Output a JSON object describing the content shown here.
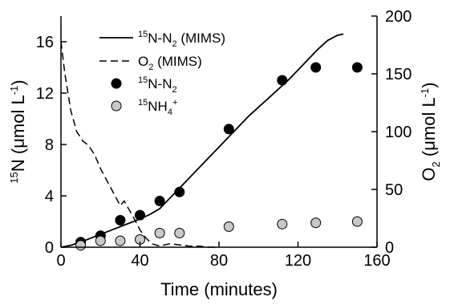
{
  "chart_data": {
    "type": "line",
    "xlabel": "Time (minutes)",
    "ylabel_left": {
      "sup": "15",
      "main": "N (μmol L",
      "sup2": "-1",
      "end": ")"
    },
    "ylabel_right": {
      "main": "O",
      "sub": "2",
      "rest": " (μmol L",
      "sup": "-1",
      "end": ")"
    },
    "xlim": [
      0,
      160
    ],
    "ylim_left": [
      0,
      18
    ],
    "ylim_right": [
      0,
      200
    ],
    "x_ticks": [
      0,
      40,
      80,
      120,
      160
    ],
    "y_ticks_left": [
      0,
      4,
      8,
      12,
      16
    ],
    "y_ticks_right": [
      0,
      50,
      100,
      150,
      200
    ],
    "grid": false,
    "legend_position": "top-left",
    "legend": [
      {
        "style": "solid-line",
        "sup": "15",
        "base": "N-N",
        "sub": "2",
        "tail": " (MIMS)"
      },
      {
        "style": "dashed-line",
        "sup": "",
        "base": "O",
        "sub": "2",
        "tail": " (MIMS)"
      },
      {
        "style": "black-dot",
        "sup": "15",
        "base": "N-N",
        "sub": "2",
        "tail": ""
      },
      {
        "style": "grey-dot",
        "sup": "15",
        "base": "NH",
        "sub": "4",
        "tail": "",
        "sup2": "+"
      }
    ],
    "series": [
      {
        "name": "15N-N2 (MIMS)",
        "axis": "left",
        "style": "solid",
        "color": "#000000",
        "points": [
          [
            0,
            0
          ],
          [
            5,
            0.15
          ],
          [
            10,
            0.4
          ],
          [
            15,
            0.7
          ],
          [
            20,
            1.0
          ],
          [
            25,
            1.3
          ],
          [
            30,
            1.6
          ],
          [
            35,
            1.9
          ],
          [
            40,
            2.2
          ],
          [
            45,
            2.55
          ],
          [
            50,
            3.0
          ],
          [
            55,
            3.8
          ],
          [
            60,
            4.6
          ],
          [
            65,
            5.4
          ],
          [
            70,
            6.2
          ],
          [
            75,
            7.0
          ],
          [
            80,
            7.8
          ],
          [
            85,
            8.6
          ],
          [
            90,
            9.4
          ],
          [
            95,
            10.2
          ],
          [
            100,
            10.9
          ],
          [
            105,
            11.6
          ],
          [
            110,
            12.3
          ],
          [
            115,
            13.0
          ],
          [
            120,
            13.8
          ],
          [
            125,
            14.6
          ],
          [
            130,
            15.4
          ],
          [
            135,
            16.1
          ],
          [
            140,
            16.5
          ],
          [
            143,
            16.6
          ]
        ]
      },
      {
        "name": "O2 (MIMS)",
        "axis": "right",
        "style": "dashed",
        "color": "#000000",
        "points": [
          [
            0,
            178
          ],
          [
            2,
            150
          ],
          [
            5,
            118
          ],
          [
            8,
            100
          ],
          [
            11,
            92
          ],
          [
            14,
            88
          ],
          [
            17,
            80
          ],
          [
            20,
            68
          ],
          [
            25,
            52
          ],
          [
            30,
            36
          ],
          [
            32,
            40
          ],
          [
            34,
            34
          ],
          [
            37,
            25
          ],
          [
            40,
            15
          ],
          [
            43,
            8
          ],
          [
            46,
            3
          ],
          [
            50,
            1
          ],
          [
            55,
            3
          ],
          [
            60,
            2
          ],
          [
            65,
            1
          ],
          [
            70,
            1
          ],
          [
            75,
            0
          ],
          [
            79,
            0
          ]
        ]
      },
      {
        "name": "15N-N2",
        "axis": "left",
        "style": "marker",
        "marker_color": "#000000",
        "points": [
          [
            10,
            0.4
          ],
          [
            20,
            0.9
          ],
          [
            30,
            2.1
          ],
          [
            40,
            2.5
          ],
          [
            50,
            3.6
          ],
          [
            60,
            4.3
          ],
          [
            85,
            9.2
          ],
          [
            112,
            13.0
          ],
          [
            129,
            14.0
          ],
          [
            150,
            14.0
          ]
        ]
      },
      {
        "name": "15NH4+",
        "axis": "left",
        "style": "marker",
        "marker_color": "#c8c8c8",
        "points": [
          [
            10,
            0.15
          ],
          [
            20,
            0.5
          ],
          [
            30,
            0.5
          ],
          [
            40,
            0.6
          ],
          [
            50,
            1.1
          ],
          [
            60,
            1.1
          ],
          [
            85,
            1.6
          ],
          [
            112,
            1.8
          ],
          [
            129,
            1.9
          ],
          [
            150,
            2.0
          ]
        ]
      }
    ]
  }
}
